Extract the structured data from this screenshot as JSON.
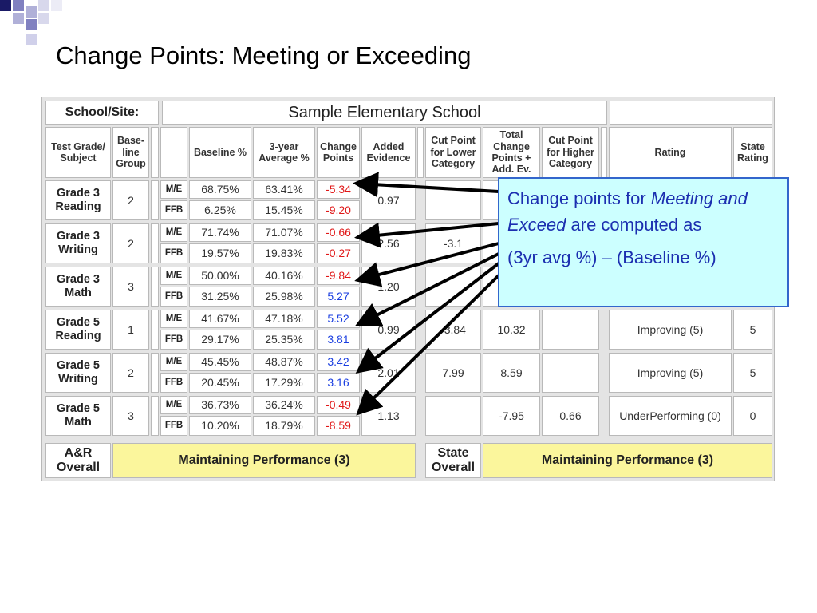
{
  "slide": {
    "title": "Change Points: Meeting or Exceeding"
  },
  "table": {
    "school_label": "School/Site:",
    "school_name": "Sample Elementary School",
    "headers": {
      "subject": "Test Grade/ Subject",
      "group": "Base-line Group",
      "baseline": "Baseline %",
      "avg3": "3-year Average %",
      "change": "Change Points",
      "added": "Added Evidence",
      "cut_lower": "Cut Point for Lower Category",
      "total": "Total Change Points + Add. Ev.",
      "cut_higher": "Cut Point for Higher Category",
      "rating": "Rating",
      "state_rating": "State Rating"
    },
    "rows": [
      {
        "grade": "Grade 3 Reading",
        "group": "2",
        "me": {
          "tag": "M/E",
          "baseline": "68.75%",
          "avg": "63.41%",
          "change": "-5.34"
        },
        "ffb": {
          "tag": "FFB",
          "baseline": "6.25%",
          "avg": "15.45%",
          "change": "-9.20"
        },
        "added": "0.97",
        "cut_lower": "",
        "total": "",
        "cut_higher": "",
        "rating": "",
        "state": ""
      },
      {
        "grade": "Grade 3 Writing",
        "group": "2",
        "me": {
          "tag": "M/E",
          "baseline": "71.74%",
          "avg": "71.07%",
          "change": "-0.66"
        },
        "ffb": {
          "tag": "FFB",
          "baseline": "19.57%",
          "avg": "19.83%",
          "change": "-0.27"
        },
        "added": "2.56",
        "cut_lower": "-3.1",
        "total": "",
        "cut_higher": "",
        "rating": "",
        "state": ""
      },
      {
        "grade": "Grade 3 Math",
        "group": "3",
        "me": {
          "tag": "M/E",
          "baseline": "50.00%",
          "avg": "40.16%",
          "change": "-9.84"
        },
        "ffb": {
          "tag": "FFB",
          "baseline": "31.25%",
          "avg": "25.98%",
          "change": "5.27"
        },
        "added": "1.20",
        "cut_lower": "",
        "total": "",
        "cut_higher": "",
        "rating": "",
        "state": ""
      },
      {
        "grade": "Grade 5 Reading",
        "group": "1",
        "me": {
          "tag": "M/E",
          "baseline": "41.67%",
          "avg": "47.18%",
          "change": "5.52"
        },
        "ffb": {
          "tag": "FFB",
          "baseline": "29.17%",
          "avg": "25.35%",
          "change": "3.81"
        },
        "added": "0.99",
        "cut_lower": "-3.84",
        "total": "10.32",
        "cut_higher": "",
        "rating": "Improving (5)",
        "state": "5"
      },
      {
        "grade": "Grade 5 Writing",
        "group": "2",
        "me": {
          "tag": "M/E",
          "baseline": "45.45%",
          "avg": "48.87%",
          "change": "3.42"
        },
        "ffb": {
          "tag": "FFB",
          "baseline": "20.45%",
          "avg": "17.29%",
          "change": "3.16"
        },
        "added": "2.01",
        "cut_lower": "7.99",
        "total": "8.59",
        "cut_higher": "",
        "rating": "Improving (5)",
        "state": "5"
      },
      {
        "grade": "Grade 5 Math",
        "group": "3",
        "me": {
          "tag": "M/E",
          "baseline": "36.73%",
          "avg": "36.24%",
          "change": "-0.49"
        },
        "ffb": {
          "tag": "FFB",
          "baseline": "10.20%",
          "avg": "18.79%",
          "change": "-8.59"
        },
        "added": "1.13",
        "cut_lower": "",
        "total": "-7.95",
        "cut_higher": "0.66",
        "rating": "UnderPerforming (0)",
        "state": "0"
      }
    ],
    "footer": {
      "ar_label": "A&R Overall",
      "ar_value": "Maintaining Performance (3)",
      "state_label": "State Overall",
      "state_value": "Maintaining Performance (3)"
    }
  },
  "callout": {
    "line1_pre": "Change points for ",
    "line1_em": "Meeting and Exceed",
    "line1_post": " are computed as",
    "line2": "(3yr avg %) – (Baseline %)"
  },
  "colors": {
    "negative": "#e01818",
    "positive": "#1a3ee0",
    "highlight": "#fbf69c",
    "callout_bg": "#ccffff",
    "callout_text": "#1c2fb0"
  }
}
